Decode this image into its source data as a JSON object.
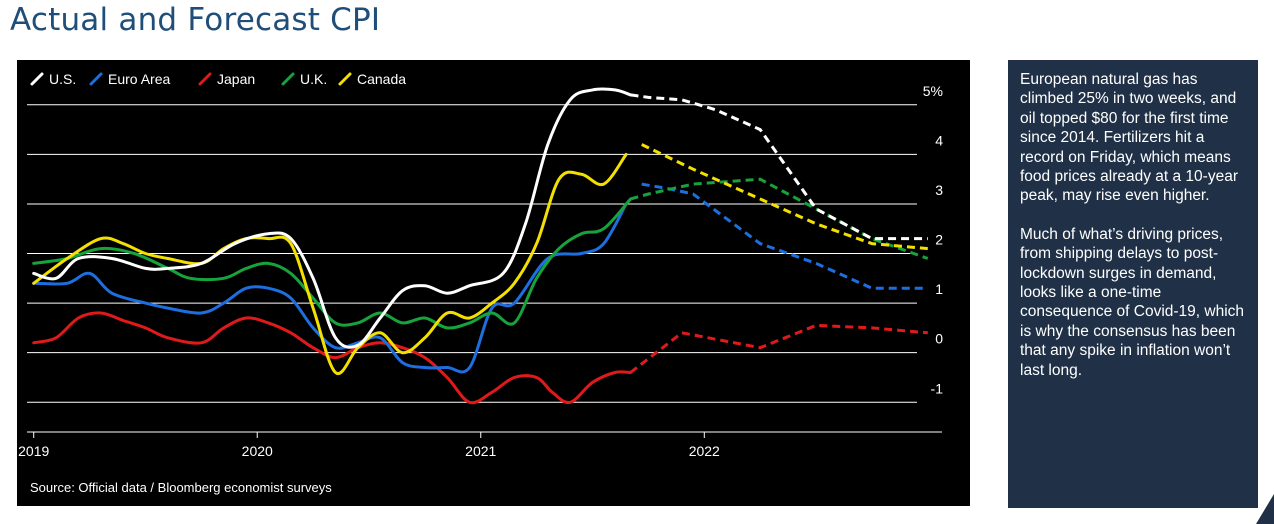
{
  "title": "Actual and Forecast CPI",
  "side_text": {
    "paragraph_1": "European natural gas has climbed 25% in two weeks, and oil topped $80 for the first time since 2014. Fertilizers hit a record on Friday, which means food prices already at a 10-year peak, may rise even higher.",
    "paragraph_2": "Much of what’s driving prices, from shipping delays to post-lockdown surges in demand, looks like a one-time consequence of Covid-19, which is why the consensus has been that any spike in inflation won’t last long."
  },
  "colors": {
    "background": "#000000",
    "grid": "#ffffff",
    "text": "#ffffff",
    "title": "#1f4e79",
    "side_panel": "#1f3047"
  },
  "chart_data": {
    "type": "line",
    "source": "Source: Official data / Bloomberg economist surveys",
    "x_unit": "year",
    "x_ticks": [
      2019,
      2020,
      2021,
      2022
    ],
    "y_tick_labels": [
      "5%",
      "4",
      "3",
      "2",
      "1",
      "0",
      "-1"
    ],
    "y_ticks": [
      5,
      4,
      3,
      2,
      1,
      0,
      -1
    ],
    "ylim": [
      -1.6,
      5.5
    ],
    "xlim": [
      2018.97,
      2023.05
    ],
    "forecast_start": 2021.67,
    "grid": "horizontal",
    "legend_position": "top-left",
    "series": [
      {
        "name": "U.S.",
        "color": "#ffffff",
        "points": [
          [
            2019.0,
            1.6
          ],
          [
            2019.1,
            1.5
          ],
          [
            2019.2,
            1.9
          ],
          [
            2019.35,
            1.9
          ],
          [
            2019.5,
            1.7
          ],
          [
            2019.6,
            1.7
          ],
          [
            2019.75,
            1.8
          ],
          [
            2019.9,
            2.2
          ],
          [
            2020.05,
            2.4
          ],
          [
            2020.15,
            2.3
          ],
          [
            2020.25,
            1.5
          ],
          [
            2020.35,
            0.3
          ],
          [
            2020.45,
            0.15
          ],
          [
            2020.55,
            0.7
          ],
          [
            2020.65,
            1.25
          ],
          [
            2020.75,
            1.35
          ],
          [
            2020.85,
            1.2
          ],
          [
            2020.95,
            1.35
          ],
          [
            2021.1,
            1.6
          ],
          [
            2021.2,
            2.6
          ],
          [
            2021.3,
            4.2
          ],
          [
            2021.4,
            5.1
          ],
          [
            2021.5,
            5.3
          ],
          [
            2021.6,
            5.3
          ],
          [
            2021.67,
            5.2
          ],
          [
            2021.75,
            5.15
          ],
          [
            2021.9,
            5.1
          ],
          [
            2022.05,
            4.9
          ],
          [
            2022.25,
            4.5
          ],
          [
            2022.5,
            2.9
          ],
          [
            2022.75,
            2.3
          ],
          [
            2023.0,
            2.3
          ]
        ]
      },
      {
        "name": "Euro Area",
        "color": "#1d6fe0",
        "points": [
          [
            2019.0,
            1.4
          ],
          [
            2019.15,
            1.4
          ],
          [
            2019.25,
            1.6
          ],
          [
            2019.35,
            1.2
          ],
          [
            2019.5,
            1.0
          ],
          [
            2019.6,
            0.9
          ],
          [
            2019.75,
            0.8
          ],
          [
            2019.85,
            1.0
          ],
          [
            2019.95,
            1.3
          ],
          [
            2020.05,
            1.3
          ],
          [
            2020.15,
            1.1
          ],
          [
            2020.25,
            0.5
          ],
          [
            2020.35,
            0.1
          ],
          [
            2020.45,
            0.2
          ],
          [
            2020.55,
            0.3
          ],
          [
            2020.65,
            -0.2
          ],
          [
            2020.75,
            -0.3
          ],
          [
            2020.85,
            -0.3
          ],
          [
            2020.95,
            -0.3
          ],
          [
            2021.05,
            0.9
          ],
          [
            2021.15,
            1.0
          ],
          [
            2021.3,
            1.9
          ],
          [
            2021.45,
            2.0
          ],
          [
            2021.55,
            2.2
          ],
          [
            2021.65,
            3.0
          ],
          [
            2021.72,
            3.4
          ],
          [
            2021.85,
            3.3
          ],
          [
            2021.95,
            3.2
          ],
          [
            2022.25,
            2.2
          ],
          [
            2022.5,
            1.8
          ],
          [
            2022.75,
            1.3
          ],
          [
            2023.0,
            1.3
          ]
        ]
      },
      {
        "name": "Japan",
        "color": "#e01a1a",
        "points": [
          [
            2019.0,
            0.2
          ],
          [
            2019.1,
            0.3
          ],
          [
            2019.2,
            0.7
          ],
          [
            2019.3,
            0.8
          ],
          [
            2019.4,
            0.65
          ],
          [
            2019.5,
            0.5
          ],
          [
            2019.6,
            0.3
          ],
          [
            2019.75,
            0.2
          ],
          [
            2019.85,
            0.5
          ],
          [
            2019.95,
            0.7
          ],
          [
            2020.05,
            0.6
          ],
          [
            2020.15,
            0.4
          ],
          [
            2020.25,
            0.1
          ],
          [
            2020.35,
            -0.1
          ],
          [
            2020.45,
            0.1
          ],
          [
            2020.55,
            0.2
          ],
          [
            2020.65,
            0.1
          ],
          [
            2020.75,
            -0.1
          ],
          [
            2020.85,
            -0.5
          ],
          [
            2020.95,
            -1.0
          ],
          [
            2021.05,
            -0.8
          ],
          [
            2021.15,
            -0.5
          ],
          [
            2021.25,
            -0.5
          ],
          [
            2021.32,
            -0.8
          ],
          [
            2021.4,
            -1.0
          ],
          [
            2021.5,
            -0.6
          ],
          [
            2021.6,
            -0.4
          ],
          [
            2021.67,
            -0.4
          ],
          [
            2021.9,
            0.4
          ],
          [
            2022.25,
            0.1
          ],
          [
            2022.5,
            0.55
          ],
          [
            2022.75,
            0.5
          ],
          [
            2023.0,
            0.4
          ]
        ]
      },
      {
        "name": "U.K.",
        "color": "#17a33c",
        "points": [
          [
            2019.0,
            1.8
          ],
          [
            2019.15,
            1.9
          ],
          [
            2019.3,
            2.1
          ],
          [
            2019.45,
            2.0
          ],
          [
            2019.6,
            1.7
          ],
          [
            2019.7,
            1.5
          ],
          [
            2019.85,
            1.5
          ],
          [
            2019.95,
            1.7
          ],
          [
            2020.05,
            1.8
          ],
          [
            2020.15,
            1.6
          ],
          [
            2020.25,
            1.1
          ],
          [
            2020.35,
            0.6
          ],
          [
            2020.45,
            0.6
          ],
          [
            2020.55,
            0.8
          ],
          [
            2020.65,
            0.6
          ],
          [
            2020.75,
            0.7
          ],
          [
            2020.85,
            0.5
          ],
          [
            2020.95,
            0.6
          ],
          [
            2021.05,
            0.8
          ],
          [
            2021.15,
            0.6
          ],
          [
            2021.25,
            1.5
          ],
          [
            2021.35,
            2.1
          ],
          [
            2021.45,
            2.4
          ],
          [
            2021.55,
            2.5
          ],
          [
            2021.67,
            3.1
          ],
          [
            2021.75,
            3.2
          ],
          [
            2021.95,
            3.4
          ],
          [
            2022.25,
            3.5
          ],
          [
            2022.5,
            2.9
          ],
          [
            2022.75,
            2.3
          ],
          [
            2023.0,
            1.9
          ]
        ]
      },
      {
        "name": "Canada",
        "color": "#f4e000",
        "points": [
          [
            2019.0,
            1.4
          ],
          [
            2019.15,
            1.9
          ],
          [
            2019.3,
            2.3
          ],
          [
            2019.4,
            2.2
          ],
          [
            2019.5,
            2.0
          ],
          [
            2019.6,
            1.9
          ],
          [
            2019.75,
            1.8
          ],
          [
            2019.85,
            2.1
          ],
          [
            2019.95,
            2.3
          ],
          [
            2020.05,
            2.3
          ],
          [
            2020.15,
            2.2
          ],
          [
            2020.25,
            0.9
          ],
          [
            2020.35,
            -0.4
          ],
          [
            2020.45,
            0.1
          ],
          [
            2020.55,
            0.4
          ],
          [
            2020.65,
            0.0
          ],
          [
            2020.75,
            0.3
          ],
          [
            2020.85,
            0.8
          ],
          [
            2020.95,
            0.7
          ],
          [
            2021.05,
            1.0
          ],
          [
            2021.15,
            1.4
          ],
          [
            2021.25,
            2.2
          ],
          [
            2021.35,
            3.5
          ],
          [
            2021.45,
            3.6
          ],
          [
            2021.55,
            3.4
          ],
          [
            2021.65,
            4.0
          ],
          [
            2021.72,
            4.2
          ],
          [
            2021.95,
            3.7
          ],
          [
            2022.25,
            3.1
          ],
          [
            2022.5,
            2.6
          ],
          [
            2022.75,
            2.2
          ],
          [
            2023.0,
            2.1
          ]
        ]
      }
    ]
  }
}
